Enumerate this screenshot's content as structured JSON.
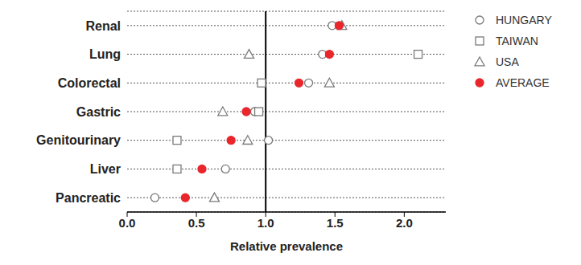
{
  "chart_data": {
    "type": "scatter",
    "categories": [
      "Renal",
      "Lung",
      "Colorectal",
      "Gastric",
      "Genitourinary",
      "Liver",
      "Pancreatic"
    ],
    "series": [
      {
        "name": "HUNGARY",
        "color": "#7a7a7a",
        "marker": "circle_open",
        "values": [
          1.48,
          1.41,
          1.31,
          0.92,
          1.02,
          0.71,
          0.2
        ]
      },
      {
        "name": "TAIWAN",
        "color": "#7a7a7a",
        "marker": "square_open",
        "values": [
          null,
          2.1,
          0.97,
          0.95,
          0.36,
          0.36,
          null
        ]
      },
      {
        "name": "USA",
        "color": "#7a7a7a",
        "marker": "triangle_open",
        "values": [
          1.55,
          0.88,
          1.46,
          0.69,
          0.87,
          null,
          0.63
        ]
      },
      {
        "name": "AVERAGE",
        "color": "#e8262b",
        "marker": "circle",
        "values": [
          1.53,
          1.46,
          1.24,
          0.86,
          0.75,
          0.54,
          0.42
        ]
      }
    ],
    "xlabel": "Relative prevalence",
    "xlim": [
      0,
      2.3
    ],
    "xticks": [
      {
        "value": 0,
        "label": "0.0"
      },
      {
        "value": 0.5,
        "label": "0.5"
      },
      {
        "value": 1,
        "label": "1.0"
      },
      {
        "value": 1.5,
        "label": "1.5"
      },
      {
        "value": 2,
        "label": "2.0"
      }
    ],
    "reference_x": 1,
    "grid": true,
    "legend": "right"
  }
}
